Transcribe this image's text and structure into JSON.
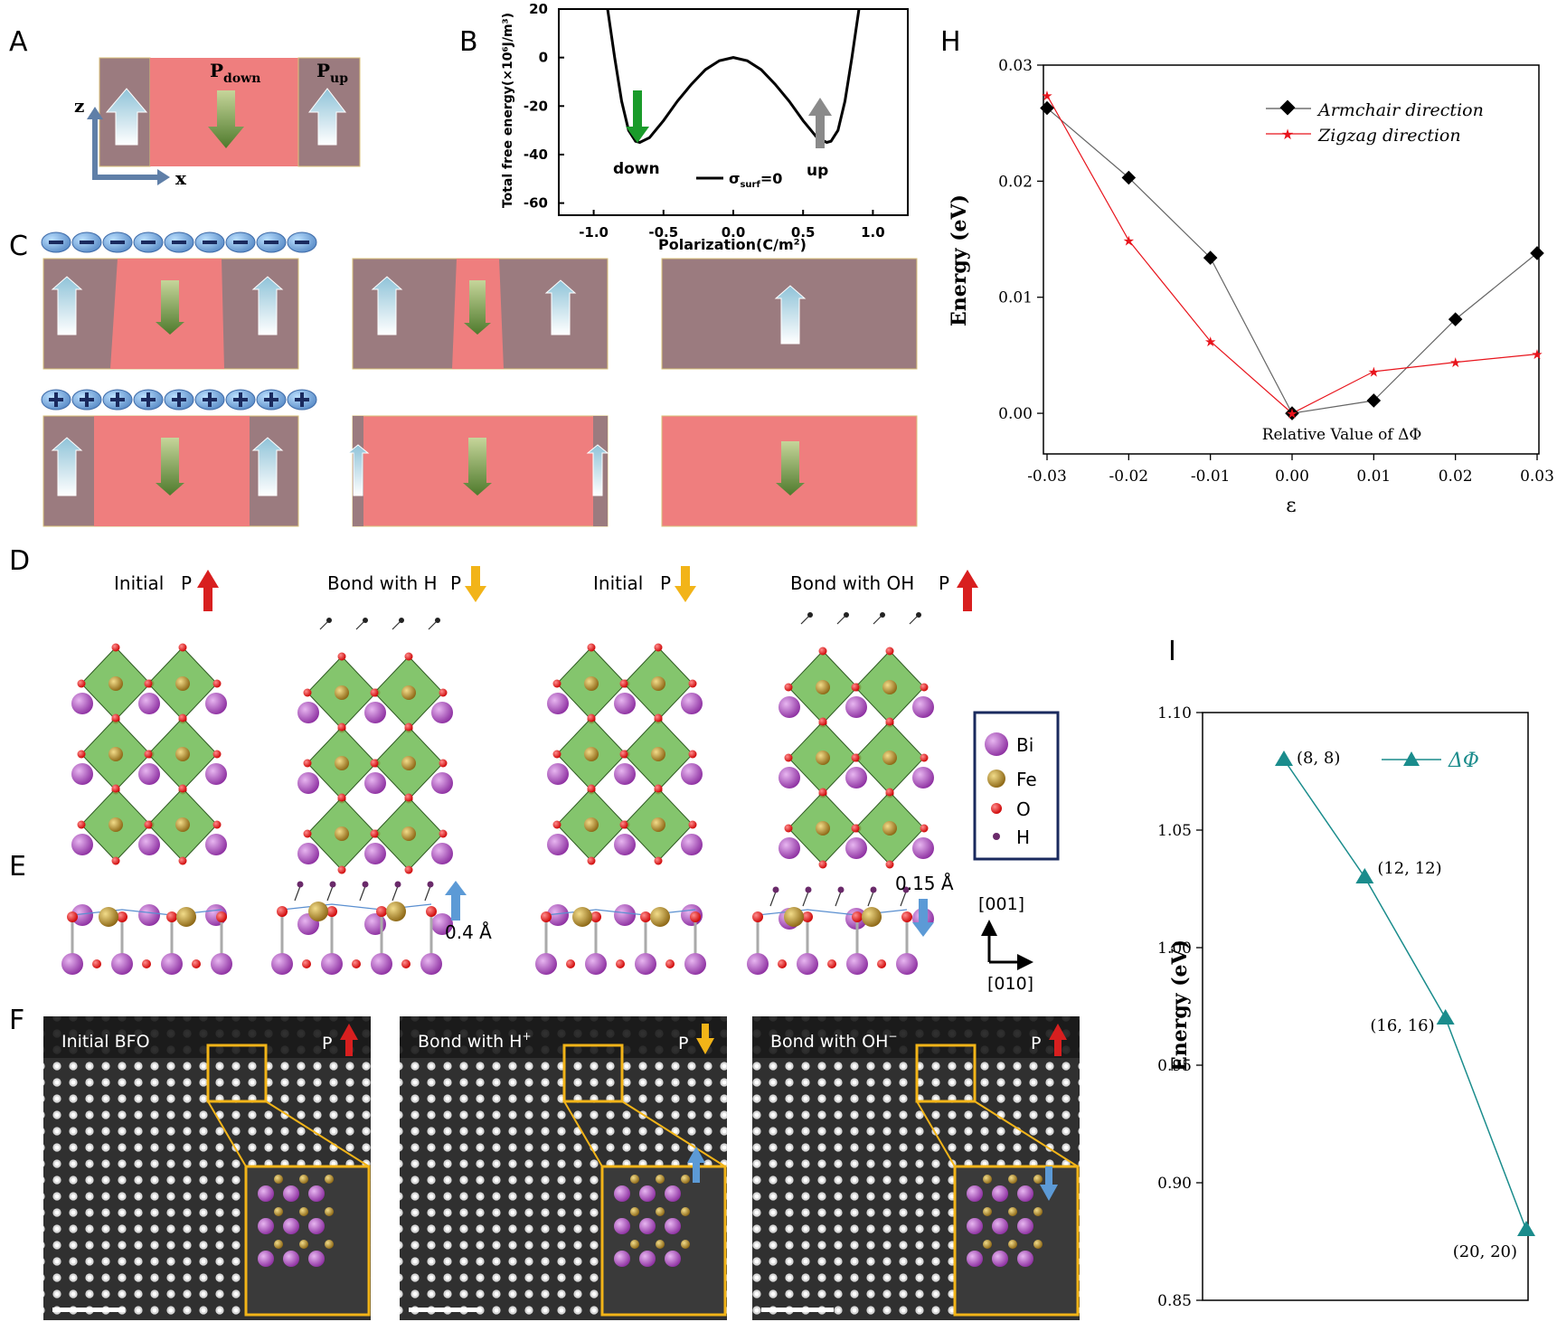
{
  "panels": {
    "A": {
      "letter": "A",
      "p_down": "P",
      "p_down_sub": "down",
      "p_up": "P",
      "p_up_sub": "up",
      "axis_z": "z",
      "axis_x": "x"
    },
    "B": {
      "letter": "B",
      "legend": "σ",
      "legend_sub": "surf",
      "legend_suffix": "=0",
      "label_down": "down",
      "label_up": "up"
    },
    "C": {
      "letter": "C"
    },
    "D": {
      "letter": "D",
      "labels": [
        "Initial",
        "Bond with H",
        "Initial",
        "Bond with OH"
      ],
      "p_label": "P",
      "legend": [
        {
          "label": "Bi",
          "color": "#b04bc4"
        },
        {
          "label": "Fe",
          "color": "#c79a2a"
        },
        {
          "label": "O",
          "color": "#e0201e"
        },
        {
          "label": "H",
          "color": "#6a2a6a"
        }
      ]
    },
    "E": {
      "letter": "E",
      "shift1": "0.4 Å",
      "shift2": "0.15 Å",
      "axis_up": "[001]",
      "axis_right": "[010]"
    },
    "F": {
      "letter": "F",
      "labels": [
        "Initial BFO",
        "Bond with H",
        "Bond with OH"
      ],
      "sup": [
        "",
        "+",
        "−"
      ],
      "p_label": "P"
    },
    "H": {
      "letter": "H"
    },
    "I": {
      "letter": "I"
    }
  },
  "chart_data": [
    {
      "panel": "B",
      "type": "line",
      "xlabel": "Polarization(C/m²)",
      "ylabel": "Total free energy(×10⁶J/m³)",
      "xlim": [
        -1.25,
        1.25
      ],
      "ylim": [
        -65,
        20
      ],
      "x_ticks": [
        -1.0,
        -0.5,
        0.0,
        0.5,
        1.0
      ],
      "x_tick_labels": [
        "-1.0",
        "-0.5",
        "0.0",
        "0.5",
        "1.0"
      ],
      "y_ticks": [
        20,
        0,
        -20,
        -40,
        -60
      ],
      "y_tick_labels": [
        "20",
        "0",
        "-20",
        "-40",
        "-60"
      ],
      "series": [
        {
          "name": "σsurf=0",
          "x": [
            -0.9,
            -0.85,
            -0.8,
            -0.75,
            -0.7,
            -0.67,
            -0.6,
            -0.5,
            -0.4,
            -0.3,
            -0.2,
            -0.1,
            0.0,
            0.1,
            0.2,
            0.3,
            0.4,
            0.5,
            0.6,
            0.67,
            0.7,
            0.75,
            0.8,
            0.85,
            0.9
          ],
          "y": [
            20,
            0,
            -18,
            -30,
            -34.5,
            -35,
            -33,
            -26,
            -18,
            -11,
            -5,
            -1.3,
            0,
            -1.3,
            -5,
            -11,
            -18,
            -26,
            -33,
            -35,
            -34.5,
            -30,
            -18,
            0,
            20
          ]
        }
      ]
    },
    {
      "panel": "H",
      "type": "line",
      "xlabel": "ε",
      "ylabel": "Energy (eV)",
      "annotation": "Relative Value of ΔΦ",
      "xlim": [
        -0.03,
        0.03
      ],
      "ylim": [
        -0.0035,
        0.03
      ],
      "x_ticks": [
        -0.03,
        -0.02,
        -0.01,
        0.0,
        0.01,
        0.02,
        0.03
      ],
      "x_tick_labels": [
        "-0.03",
        "-0.02",
        "-0.01",
        "0.00",
        "0.01",
        "0.02",
        "0.03"
      ],
      "y_ticks": [
        0.0,
        0.01,
        0.02,
        0.03
      ],
      "y_tick_labels": [
        "0.00",
        "0.01",
        "0.02",
        "0.03"
      ],
      "categories": [
        -0.03,
        -0.02,
        -0.01,
        0.0,
        0.01,
        0.02,
        0.03
      ],
      "series": [
        {
          "name": "Armchair direction",
          "color": "#000000",
          "marker": "diamond",
          "values": [
            0.0263,
            0.0203,
            0.0134,
            0.0,
            0.0011,
            0.0081,
            0.0138
          ]
        },
        {
          "name": "Zigzag direction",
          "color": "#e8141c",
          "marker": "star",
          "values": [
            0.0274,
            0.0149,
            0.0062,
            0.0,
            0.0036,
            0.0044,
            0.0051
          ]
        }
      ]
    },
    {
      "panel": "I",
      "type": "line",
      "ylabel": "Energy (eV)",
      "ylim": [
        0.85,
        1.1
      ],
      "y_ticks": [
        0.85,
        0.9,
        0.95,
        1.0,
        1.05,
        1.1
      ],
      "y_tick_labels": [
        "0.85",
        "0.90",
        "0.95",
        "1.00",
        "1.05",
        "1.10"
      ],
      "series": [
        {
          "name": "ΔΦ",
          "color": "#1a8c8c",
          "marker": "triangle",
          "point_labels": [
            "(8, 8)",
            "(12, 12)",
            "(16, 16)",
            "(20, 20)"
          ],
          "values": [
            1.08,
            1.03,
            0.97,
            0.88
          ]
        }
      ]
    }
  ]
}
